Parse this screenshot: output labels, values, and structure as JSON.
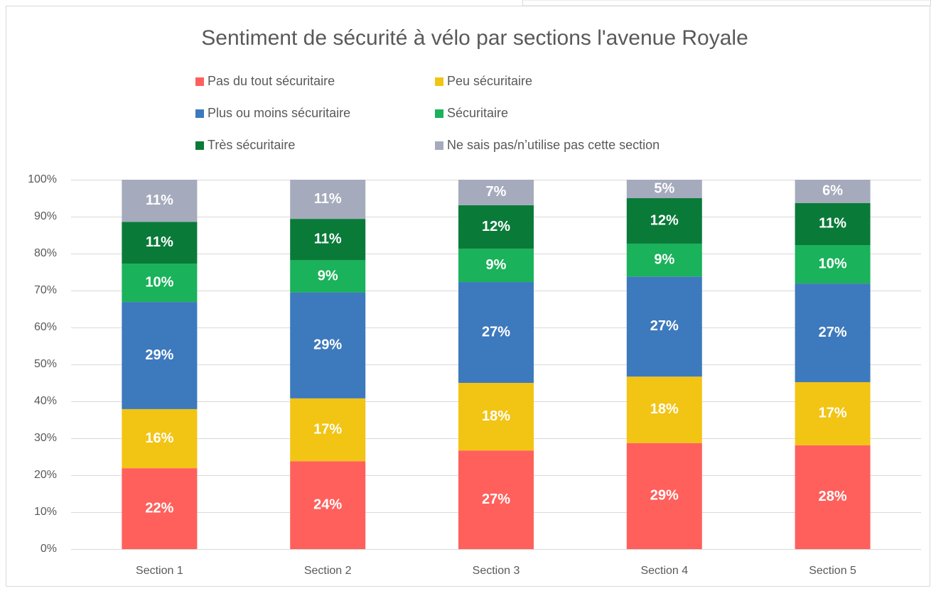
{
  "chart_data": {
    "type": "stacked_bar",
    "title": "Sentiment de sécurité à vélo par sections l'avenue Royale",
    "categories": [
      "Section 1",
      "Section 2",
      "Section 3",
      "Section 4",
      "Section 5"
    ],
    "series": [
      {
        "name": "Pas du tout sécuritaire",
        "color": "#ff605c",
        "values": [
          21.9,
          23.8,
          26.7,
          28.7,
          28.1
        ],
        "value_labels": [
          "22%",
          "24%",
          "27%",
          "29%",
          "28%"
        ]
      },
      {
        "name": "Peu sécuritaire",
        "color": "#f2c414",
        "values": [
          16.0,
          17.0,
          18.3,
          18.0,
          17.1
        ],
        "value_labels": [
          "16%",
          "17%",
          "18%",
          "18%",
          "17%"
        ]
      },
      {
        "name": "Plus ou moins sécuritaire",
        "color": "#3d79bd",
        "values": [
          29.0,
          28.7,
          27.3,
          27.1,
          26.7
        ],
        "value_labels": [
          "29%",
          "29%",
          "27%",
          "27%",
          "27%"
        ]
      },
      {
        "name": "Sécuritaire",
        "color": "#1ab25a",
        "values": [
          10.4,
          8.7,
          9.0,
          8.9,
          10.4
        ],
        "value_labels": [
          "10%",
          "9%",
          "9%",
          "9%",
          "10%"
        ]
      },
      {
        "name": "Très sécuritaire",
        "color": "#0a7a39",
        "values": [
          11.3,
          11.2,
          11.8,
          12.3,
          11.4
        ],
        "value_labels": [
          "11%",
          "11%",
          "12%",
          "12%",
          "11%"
        ]
      },
      {
        "name": "Ne sais pas/n’utilise pas cette section",
        "color": "#a5abbd",
        "values": [
          11.4,
          10.6,
          6.9,
          5.0,
          6.3
        ],
        "value_labels": [
          "11%",
          "11%",
          "7%",
          "5%",
          "6%"
        ]
      }
    ],
    "ylim": [
      0,
      100
    ],
    "yticks": [
      {
        "value": 0,
        "label": "0%"
      },
      {
        "value": 10,
        "label": "10%"
      },
      {
        "value": 20,
        "label": "20%"
      },
      {
        "value": 30,
        "label": "30%"
      },
      {
        "value": 40,
        "label": "40%"
      },
      {
        "value": 50,
        "label": "50%"
      },
      {
        "value": 60,
        "label": "60%"
      },
      {
        "value": 70,
        "label": "70%"
      },
      {
        "value": 80,
        "label": "80%"
      },
      {
        "value": 90,
        "label": "90%"
      },
      {
        "value": 100,
        "label": "100%"
      }
    ],
    "grid": true
  }
}
